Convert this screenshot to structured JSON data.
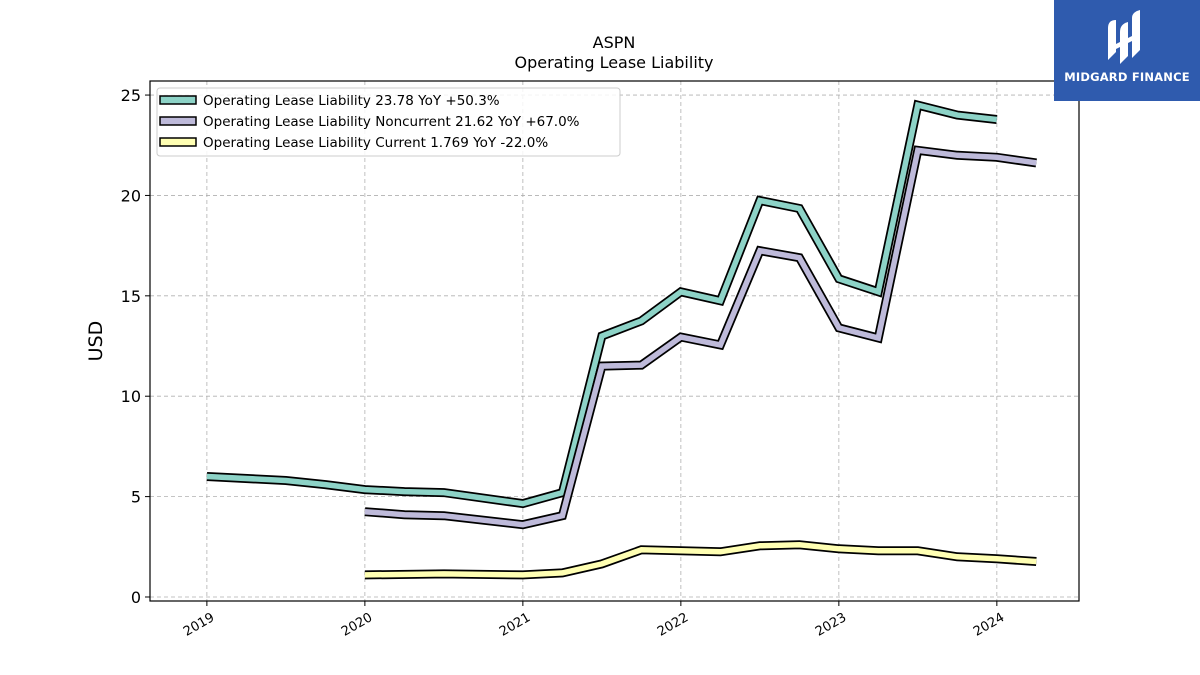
{
  "brand": {
    "name": "MIDGARD FINANCE",
    "bg_color": "#2f5bae"
  },
  "chart_data": {
    "type": "line",
    "title": "ASPN",
    "subtitle": "Operating Lease Liability",
    "xlabel": "",
    "ylabel": "USD",
    "ylim": [
      -0.2,
      25.7
    ],
    "xlim": [
      2018.64,
      2024.52
    ],
    "yticks": [
      0,
      5,
      10,
      15,
      20,
      25
    ],
    "xticks": [
      {
        "label": "2019",
        "value": 2019.0
      },
      {
        "label": "2020",
        "value": 2020.0
      },
      {
        "label": "2021",
        "value": 2021.0
      },
      {
        "label": "2022",
        "value": 2022.0
      },
      {
        "label": "2023",
        "value": 2023.0
      },
      {
        "label": "2024",
        "value": 2024.0
      }
    ],
    "grid": true,
    "legend_position": "top-left",
    "series": [
      {
        "name": "Operating Lease Liability",
        "legend": "Operating Lease Liability  23.78 YoY +50.3%",
        "color": "#8dd3c7",
        "points": [
          [
            2019.0,
            6.0
          ],
          [
            2019.5,
            5.8
          ],
          [
            2019.75,
            5.6
          ],
          [
            2020.0,
            5.35
          ],
          [
            2020.25,
            5.25
          ],
          [
            2020.5,
            5.2
          ],
          [
            2021.0,
            4.65
          ],
          [
            2021.25,
            5.2
          ],
          [
            2021.5,
            13.0
          ],
          [
            2021.75,
            13.75
          ],
          [
            2022.0,
            15.2
          ],
          [
            2022.25,
            14.75
          ],
          [
            2022.5,
            19.75
          ],
          [
            2022.75,
            19.35
          ],
          [
            2023.0,
            15.85
          ],
          [
            2023.25,
            15.2
          ],
          [
            2023.5,
            24.5
          ],
          [
            2023.75,
            24.0
          ],
          [
            2024.0,
            23.78
          ]
        ]
      },
      {
        "name": "Operating Lease Liability Noncurrent",
        "legend": "Operating Lease Liability Noncurrent  21.62 YoY +67.0%",
        "color": "#bebada",
        "points": [
          [
            2020.0,
            4.25
          ],
          [
            2020.25,
            4.1
          ],
          [
            2020.5,
            4.05
          ],
          [
            2021.0,
            3.6
          ],
          [
            2021.25,
            4.05
          ],
          [
            2021.5,
            11.5
          ],
          [
            2021.75,
            11.55
          ],
          [
            2022.0,
            12.95
          ],
          [
            2022.25,
            12.55
          ],
          [
            2022.5,
            17.25
          ],
          [
            2022.75,
            16.9
          ],
          [
            2023.0,
            13.4
          ],
          [
            2023.25,
            12.9
          ],
          [
            2023.5,
            22.25
          ],
          [
            2023.75,
            22.0
          ],
          [
            2024.0,
            21.9
          ],
          [
            2024.25,
            21.62
          ]
        ]
      },
      {
        "name": "Operating Lease Liability Current",
        "legend": "Operating Lease Liability Current  1.769 YoY -22.0%",
        "color": "#ffffb3",
        "points": [
          [
            2020.0,
            1.1
          ],
          [
            2020.5,
            1.15
          ],
          [
            2021.0,
            1.1
          ],
          [
            2021.25,
            1.2
          ],
          [
            2021.5,
            1.65
          ],
          [
            2021.75,
            2.35
          ],
          [
            2022.0,
            2.3
          ],
          [
            2022.25,
            2.25
          ],
          [
            2022.5,
            2.55
          ],
          [
            2022.75,
            2.6
          ],
          [
            2023.0,
            2.4
          ],
          [
            2023.25,
            2.3
          ],
          [
            2023.5,
            2.3
          ],
          [
            2023.75,
            2.0
          ],
          [
            2024.0,
            1.9
          ],
          [
            2024.25,
            1.769
          ]
        ]
      }
    ]
  }
}
